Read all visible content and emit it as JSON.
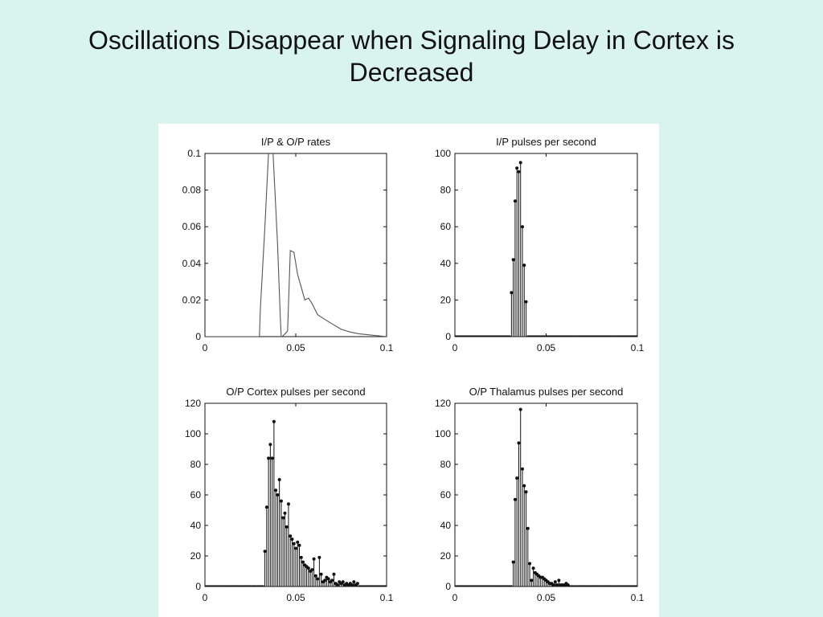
{
  "slide": {
    "title_line1": "Oscillations Disappear when Signaling Delay in Cortex is",
    "title_line2": "Decreased"
  },
  "colors": {
    "background": "#d9f4ef",
    "panel": "#ffffff",
    "ink": "#111111",
    "line": "#555555"
  },
  "chart_data": [
    {
      "id": "rates",
      "type": "line",
      "title": "I/P & O/P rates",
      "xlabel": "",
      "ylabel": "",
      "xlim": [
        0,
        0.1
      ],
      "ylim": [
        0,
        0.1
      ],
      "xticks": [
        0,
        0.05,
        0.1
      ],
      "xtick_labels": [
        "0",
        "0.05",
        "0.1"
      ],
      "yticks": [
        0,
        0.02,
        0.04,
        0.06,
        0.08,
        0.1
      ],
      "ytick_labels": [
        "0",
        "0.02",
        "0.04",
        "0.06",
        "0.08",
        "0.1"
      ],
      "series": [
        {
          "x": [
            0,
            0.03,
            0.0305,
            0.033,
            0.035,
            0.036,
            0.0375,
            0.04,
            0.0415,
            0.042
          ],
          "y": [
            0,
            0,
            0.015,
            0.06,
            0.1,
            0.105,
            0.1,
            0.05,
            0.01,
            0
          ]
        },
        {
          "x": [
            0.0415,
            0.0425,
            0.0435,
            0.0445,
            0.0455,
            0.047,
            0.049,
            0.051,
            0.053,
            0.055,
            0.057,
            0.059,
            0.062,
            0.065,
            0.07,
            0.075,
            0.08,
            0.085,
            0.09,
            0.095,
            0.1
          ],
          "y": [
            0,
            0,
            0.001,
            0.002,
            0.003,
            0.047,
            0.046,
            0.034,
            0.027,
            0.02,
            0.021,
            0.018,
            0.012,
            0.01,
            0.007,
            0.004,
            0.0025,
            0.0015,
            0.001,
            0.0005,
            0
          ]
        }
      ]
    },
    {
      "id": "ip-pulses",
      "type": "bar",
      "title": "I/P pulses per second",
      "xlabel": "",
      "ylabel": "",
      "xlim": [
        0,
        0.1
      ],
      "ylim": [
        0,
        100
      ],
      "xticks": [
        0,
        0.05,
        0.1
      ],
      "xtick_labels": [
        "0",
        "0.05",
        "0.1"
      ],
      "yticks": [
        0,
        20,
        40,
        60,
        80,
        100
      ],
      "ytick_labels": [
        "0",
        "20",
        "40",
        "60",
        "80",
        "100"
      ],
      "x": [
        0.031,
        0.032,
        0.033,
        0.034,
        0.035,
        0.036,
        0.037,
        0.038,
        0.039
      ],
      "values": [
        24,
        42,
        74,
        92,
        90,
        95,
        60,
        39,
        19
      ]
    },
    {
      "id": "cortex-pulses",
      "type": "bar",
      "title": "O/P Cortex pulses per second",
      "xlabel": "",
      "ylabel": "",
      "xlim": [
        0,
        0.1
      ],
      "ylim": [
        0,
        120
      ],
      "xticks": [
        0,
        0.05,
        0.1
      ],
      "xtick_labels": [
        "0",
        "0.05",
        "0.1"
      ],
      "yticks": [
        0,
        20,
        40,
        60,
        80,
        100,
        120
      ],
      "ytick_labels": [
        "0",
        "20",
        "40",
        "60",
        "80",
        "100",
        "120"
      ],
      "x": [
        0.033,
        0.034,
        0.035,
        0.036,
        0.037,
        0.038,
        0.039,
        0.04,
        0.041,
        0.042,
        0.043,
        0.044,
        0.045,
        0.046,
        0.047,
        0.048,
        0.049,
        0.05,
        0.051,
        0.052,
        0.053,
        0.054,
        0.055,
        0.056,
        0.057,
        0.058,
        0.059,
        0.06,
        0.061,
        0.062,
        0.063,
        0.064,
        0.065,
        0.066,
        0.067,
        0.068,
        0.069,
        0.07,
        0.071,
        0.072,
        0.073,
        0.074,
        0.075,
        0.076,
        0.077,
        0.078,
        0.079,
        0.08,
        0.081,
        0.082,
        0.083,
        0.084
      ],
      "values": [
        23,
        52,
        84,
        93,
        84,
        108,
        63,
        60,
        70,
        56,
        45,
        48,
        39,
        54,
        33,
        31,
        28,
        25,
        29,
        27,
        19,
        16,
        14,
        13,
        12,
        10,
        11,
        18,
        7,
        5,
        19,
        8,
        3,
        4,
        6,
        5,
        3,
        4,
        8,
        2,
        1,
        3,
        2,
        3,
        1,
        2,
        1,
        2,
        1,
        3,
        1,
        2
      ]
    },
    {
      "id": "thalamus-pulses",
      "type": "bar",
      "title": "O/P Thalamus pulses per second",
      "xlabel": "",
      "ylabel": "",
      "xlim": [
        0,
        0.1
      ],
      "ylim": [
        0,
        120
      ],
      "xticks": [
        0,
        0.05,
        0.1
      ],
      "xtick_labels": [
        "0",
        "0.05",
        "0.1"
      ],
      "yticks": [
        0,
        20,
        40,
        60,
        80,
        100,
        120
      ],
      "ytick_labels": [
        "0",
        "20",
        "40",
        "60",
        "80",
        "100",
        "120"
      ],
      "x": [
        0.032,
        0.033,
        0.034,
        0.035,
        0.036,
        0.037,
        0.038,
        0.039,
        0.04,
        0.041,
        0.042,
        0.043,
        0.044,
        0.045,
        0.046,
        0.047,
        0.048,
        0.049,
        0.05,
        0.051,
        0.052,
        0.053,
        0.054,
        0.055,
        0.056,
        0.057,
        0.058,
        0.059,
        0.06,
        0.061,
        0.062
      ],
      "values": [
        16,
        57,
        71,
        94,
        116,
        77,
        66,
        62,
        38,
        15,
        4,
        12,
        9,
        8,
        7,
        6,
        6,
        5,
        4,
        3,
        2,
        2,
        1,
        3,
        1,
        4,
        1,
        1,
        1,
        2,
        1
      ]
    }
  ]
}
